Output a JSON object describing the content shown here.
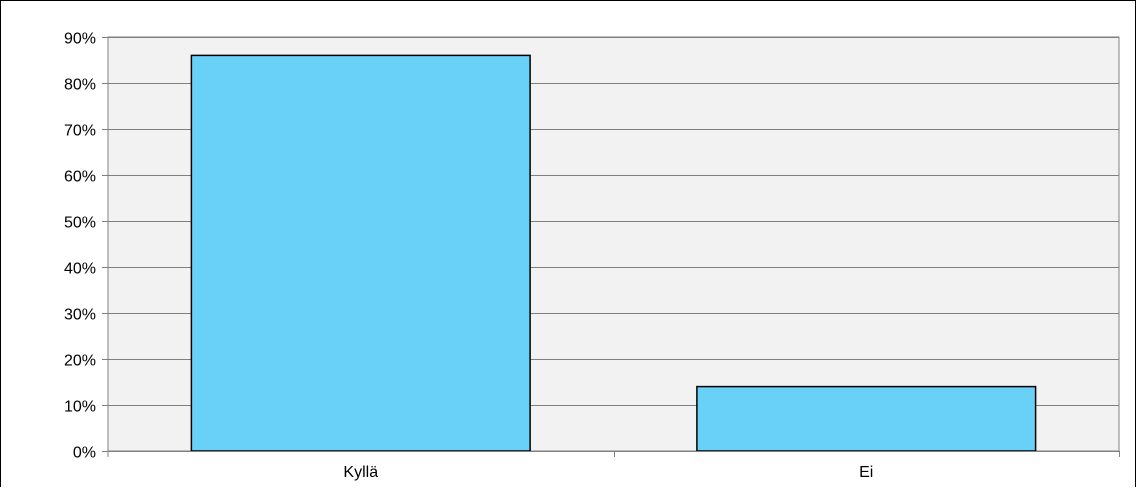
{
  "chart_data": {
    "type": "bar",
    "categories": [
      "Kyllä",
      "Ei"
    ],
    "values": [
      86,
      14
    ],
    "ylim": [
      0,
      90
    ],
    "yticks": [
      "0%",
      "10%",
      "20%",
      "30%",
      "40%",
      "50%",
      "60%",
      "70%",
      "80%",
      "90%"
    ],
    "grid": true,
    "legend": "none",
    "colors": {
      "bar_fill": "#69d1f8",
      "bar_stroke": "#000000",
      "plot_background": "#f2f2f2",
      "gridline": "#808080"
    }
  }
}
